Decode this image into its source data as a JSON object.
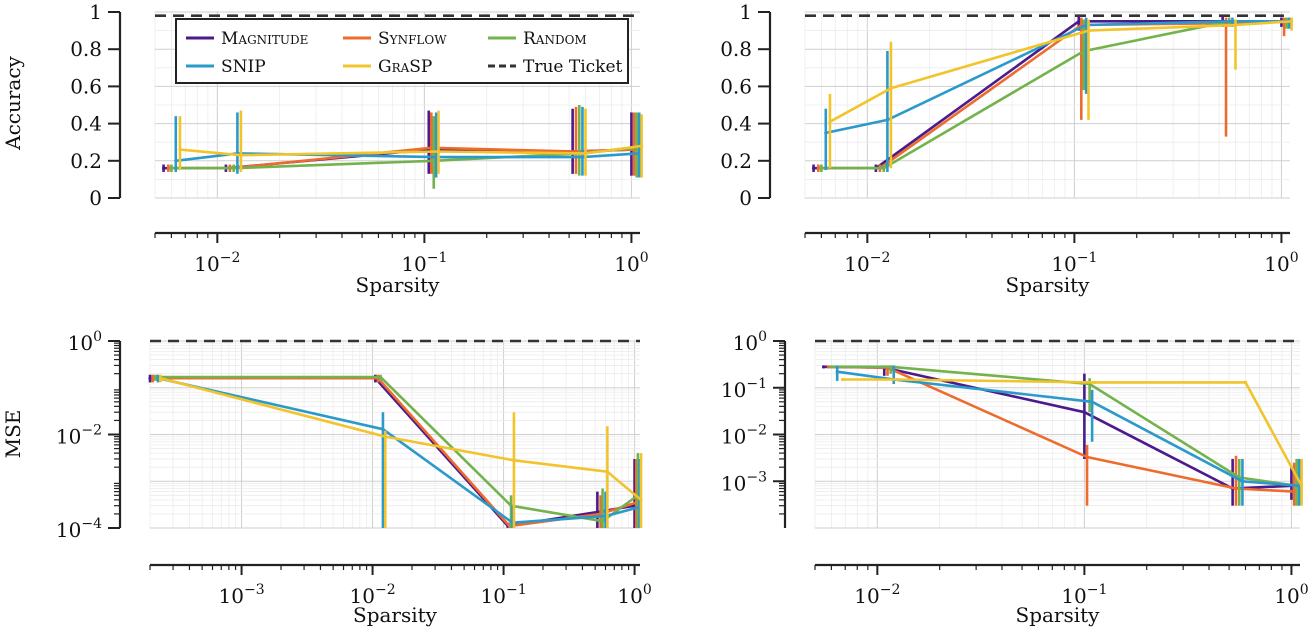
{
  "figure": {
    "x_title": "Sparsity",
    "y_title_top": "Accuracy",
    "y_title_bottom": "MSE"
  },
  "legend": {
    "items": [
      {
        "label": "Magnitude",
        "color": "#4b1a8c",
        "dash": false,
        "small_caps": true
      },
      {
        "label": "Synflow",
        "color": "#ee6b2e",
        "dash": false,
        "small_caps": true
      },
      {
        "label": "Random",
        "color": "#73b24c",
        "dash": false,
        "small_caps": true
      },
      {
        "label": "SNIP",
        "color": "#2b9acb",
        "dash": false,
        "small_caps": false
      },
      {
        "label": "GraSP",
        "color": "#f2c42c",
        "dash": false,
        "small_caps": true
      },
      {
        "label": "True Ticket",
        "color": "#333333",
        "dash": true,
        "small_caps": false
      }
    ]
  },
  "chart_data": [
    {
      "type": "line",
      "panel": "top-left",
      "xscale": "log",
      "yscale": "linear",
      "xlim": [
        0.005,
        1.1
      ],
      "ylim": [
        0,
        1
      ],
      "xlabel": "Sparsity",
      "ylabel": "Accuracy",
      "x_ticks": [
        {
          "v": 0.01,
          "base": "10",
          "exp": "−2"
        },
        {
          "v": 0.1,
          "base": "10",
          "exp": "−1"
        },
        {
          "v": 1,
          "base": "10",
          "exp": "0"
        }
      ],
      "y_ticks": [
        {
          "v": 0,
          "label": "0"
        },
        {
          "v": 0.2,
          "label": "0.2"
        },
        {
          "v": 0.4,
          "label": "0.4"
        },
        {
          "v": 0.6,
          "label": "0.6"
        },
        {
          "v": 0.8,
          "label": "0.8"
        },
        {
          "v": 1,
          "label": "1"
        }
      ],
      "reference": {
        "name": "True Ticket",
        "y": 0.98
      },
      "legend": "top-left",
      "series": [
        {
          "name": "Magnitude",
          "x": [
            0.0055,
            0.011,
            0.105,
            0.52,
            1.0
          ],
          "y": [
            0.16,
            0.16,
            0.26,
            0.25,
            0.26
          ],
          "err_low": [
            0.14,
            0.14,
            0.13,
            0.13,
            0.12
          ],
          "err_high": [
            0.18,
            0.18,
            0.47,
            0.48,
            0.46
          ]
        },
        {
          "name": "Synflow",
          "x": [
            0.0058,
            0.0115,
            0.108,
            0.54,
            1.03
          ],
          "y": [
            0.16,
            0.16,
            0.27,
            0.25,
            0.26
          ],
          "err_low": [
            0.14,
            0.14,
            0.13,
            0.13,
            0.12
          ],
          "err_high": [
            0.18,
            0.18,
            0.46,
            0.49,
            0.46
          ]
        },
        {
          "name": "Random",
          "x": [
            0.006,
            0.012,
            0.111,
            0.56,
            1.06
          ],
          "y": [
            0.16,
            0.16,
            0.2,
            0.24,
            0.27
          ],
          "err_low": [
            0.14,
            0.14,
            0.05,
            0.12,
            0.11
          ],
          "err_high": [
            0.18,
            0.18,
            0.44,
            0.5,
            0.46
          ]
        },
        {
          "name": "SNIP",
          "x": [
            0.0063,
            0.0125,
            0.114,
            0.58,
            1.09
          ],
          "y": [
            0.2,
            0.24,
            0.22,
            0.22,
            0.24
          ],
          "err_low": [
            0.14,
            0.13,
            0.11,
            0.12,
            0.11
          ],
          "err_high": [
            0.44,
            0.46,
            0.46,
            0.49,
            0.46
          ]
        },
        {
          "name": "GraSP",
          "x": [
            0.0066,
            0.013,
            0.117,
            0.6,
            1.12
          ],
          "y": [
            0.26,
            0.23,
            0.25,
            0.24,
            0.28
          ],
          "err_low": [
            0.15,
            0.14,
            0.13,
            0.12,
            0.11
          ],
          "err_high": [
            0.44,
            0.47,
            0.47,
            0.48,
            0.45
          ]
        }
      ]
    },
    {
      "type": "line",
      "panel": "top-right",
      "xscale": "log",
      "yscale": "linear",
      "xlim": [
        0.005,
        1.1
      ],
      "ylim": [
        0,
        1
      ],
      "xlabel": "Sparsity",
      "ylabel": "",
      "x_ticks": [
        {
          "v": 0.01,
          "base": "10",
          "exp": "−2"
        },
        {
          "v": 0.1,
          "base": "10",
          "exp": "−1"
        },
        {
          "v": 1,
          "base": "10",
          "exp": "0"
        }
      ],
      "y_ticks": [
        {
          "v": 0,
          "label": "0"
        },
        {
          "v": 0.2,
          "label": "0.2"
        },
        {
          "v": 0.4,
          "label": "0.4"
        },
        {
          "v": 0.6,
          "label": "0.6"
        },
        {
          "v": 0.8,
          "label": "0.8"
        },
        {
          "v": 1,
          "label": "1"
        }
      ],
      "reference": {
        "name": "True Ticket",
        "y": 0.98
      },
      "series": [
        {
          "name": "Magnitude",
          "x": [
            0.0055,
            0.011,
            0.105,
            0.52,
            1.0
          ],
          "y": [
            0.16,
            0.16,
            0.95,
            0.95,
            0.95
          ],
          "err_low": [
            0.14,
            0.14,
            0.9,
            0.92,
            0.92
          ],
          "err_high": [
            0.18,
            0.18,
            0.98,
            0.98,
            0.97
          ]
        },
        {
          "name": "Synflow",
          "x": [
            0.0058,
            0.0115,
            0.108,
            0.54,
            1.03
          ],
          "y": [
            0.16,
            0.16,
            0.93,
            0.94,
            0.95
          ],
          "err_low": [
            0.14,
            0.14,
            0.42,
            0.33,
            0.87
          ],
          "err_high": [
            0.18,
            0.18,
            0.97,
            0.97,
            0.97
          ]
        },
        {
          "name": "Random",
          "x": [
            0.006,
            0.012,
            0.111,
            0.56,
            1.06
          ],
          "y": [
            0.16,
            0.16,
            0.79,
            0.95,
            0.95
          ],
          "err_low": [
            0.14,
            0.14,
            0.58,
            0.92,
            0.91
          ],
          "err_high": [
            0.18,
            0.18,
            0.96,
            0.97,
            0.97
          ]
        },
        {
          "name": "SNIP",
          "x": [
            0.0063,
            0.0125,
            0.114,
            0.58,
            1.09
          ],
          "y": [
            0.35,
            0.42,
            0.93,
            0.95,
            0.95
          ],
          "err_low": [
            0.15,
            0.14,
            0.56,
            0.92,
            0.91
          ],
          "err_high": [
            0.48,
            0.79,
            0.97,
            0.97,
            0.97
          ]
        },
        {
          "name": "GraSP",
          "x": [
            0.0066,
            0.013,
            0.117,
            0.6,
            1.12
          ],
          "y": [
            0.41,
            0.59,
            0.9,
            0.93,
            0.95
          ],
          "err_low": [
            0.16,
            0.16,
            0.42,
            0.69,
            0.9
          ],
          "err_high": [
            0.56,
            0.84,
            0.96,
            0.96,
            0.97
          ]
        }
      ]
    },
    {
      "type": "line",
      "panel": "bottom-left",
      "xscale": "log",
      "yscale": "log",
      "xlim": [
        0.0002,
        1.1
      ],
      "ylim": [
        0.0001,
        1
      ],
      "xlabel": "Sparsity",
      "ylabel": "MSE",
      "x_ticks": [
        {
          "v": 0.001,
          "base": "10",
          "exp": "−3"
        },
        {
          "v": 0.01,
          "base": "10",
          "exp": "−2"
        },
        {
          "v": 0.1,
          "base": "10",
          "exp": "−1"
        },
        {
          "v": 1,
          "base": "10",
          "exp": "0"
        }
      ],
      "y_ticks": [
        {
          "v": 1,
          "base": "10",
          "exp": "0"
        },
        {
          "v": 0.01,
          "base": "10",
          "exp": "−2"
        },
        {
          "v": 0.0001,
          "base": "10",
          "exp": "−4"
        }
      ],
      "reference": {
        "name": "True Ticket",
        "y": 1
      },
      "series": [
        {
          "name": "Magnitude",
          "x": [
            0.0002,
            0.0105,
            0.108,
            0.52,
            1.0
          ],
          "y": [
            0.16,
            0.16,
            0.00011,
            0.00022,
            0.0003
          ],
          "err_low": [
            0.13,
            0.13,
            0.0001,
            0.0001,
            0.0001
          ],
          "err_high": [
            0.19,
            0.19,
            0.00013,
            0.0006,
            0.003
          ]
        },
        {
          "name": "Synflow",
          "x": [
            0.00021,
            0.011,
            0.111,
            0.55,
            1.03
          ],
          "y": [
            0.16,
            0.16,
            0.00011,
            0.0002,
            0.00035
          ],
          "err_low": [
            0.13,
            0.13,
            0.0001,
            0.0001,
            0.0001
          ],
          "err_high": [
            0.19,
            0.19,
            0.00013,
            0.0005,
            0.003
          ]
        },
        {
          "name": "Random",
          "x": [
            0.00022,
            0.0115,
            0.114,
            0.57,
            1.06
          ],
          "y": [
            0.17,
            0.17,
            0.0003,
            0.00014,
            0.0005
          ],
          "err_low": [
            0.14,
            0.14,
            0.0001,
            0.0001,
            0.0001
          ],
          "err_high": [
            0.19,
            0.19,
            0.0005,
            0.0007,
            0.004
          ]
        },
        {
          "name": "SNIP",
          "x": [
            0.00023,
            0.012,
            0.117,
            0.6,
            1.09
          ],
          "y": [
            0.16,
            0.013,
            0.00013,
            0.00018,
            0.00028
          ],
          "err_low": [
            0.13,
            0.0001,
            0.0001,
            0.0001,
            0.0001
          ],
          "err_high": [
            0.19,
            0.03,
            0.0003,
            0.0006,
            0.003
          ]
        },
        {
          "name": "GraSP",
          "x": [
            0.00024,
            0.0125,
            0.12,
            0.62,
            1.12
          ],
          "y": [
            0.16,
            0.009,
            0.0028,
            0.0016,
            0.0004
          ],
          "err_low": [
            0.13,
            0.0001,
            0.0001,
            0.0001,
            0.0001
          ],
          "err_high": [
            0.19,
            0.012,
            0.03,
            0.015,
            0.004
          ]
        }
      ]
    },
    {
      "type": "line",
      "panel": "bottom-right",
      "xscale": "log",
      "yscale": "log",
      "xlim": [
        0.005,
        1.1
      ],
      "ylim": [
        0.0001,
        1
      ],
      "xlabel": "Sparsity",
      "ylabel": "",
      "x_ticks": [
        {
          "v": 0.01,
          "base": "10",
          "exp": "−2"
        },
        {
          "v": 0.1,
          "base": "10",
          "exp": "−1"
        },
        {
          "v": 1,
          "base": "10",
          "exp": "0"
        }
      ],
      "y_ticks": [
        {
          "v": 1,
          "base": "10",
          "exp": "0"
        },
        {
          "v": 0.1,
          "base": "10",
          "exp": "−1"
        },
        {
          "v": 0.01,
          "base": "10",
          "exp": "−2"
        },
        {
          "v": 0.001,
          "base": "10",
          "exp": "−3"
        }
      ],
      "reference": {
        "name": "True Ticket",
        "y": 1
      },
      "series": [
        {
          "name": "Magnitude",
          "x": [
            0.0055,
            0.0108,
            0.1,
            0.52,
            1.0
          ],
          "y": [
            0.28,
            0.27,
            0.03,
            0.0007,
            0.0008
          ],
          "err_low": [
            0.26,
            0.18,
            0.003,
            0.0003,
            0.0004
          ],
          "err_high": [
            0.29,
            0.3,
            0.2,
            0.003,
            0.002
          ]
        },
        {
          "name": "Synflow",
          "x": [
            0.0058,
            0.0112,
            0.103,
            0.54,
            1.03
          ],
          "y": [
            0.28,
            0.27,
            0.0033,
            0.0007,
            0.0006
          ],
          "err_low": [
            0.26,
            0.18,
            0.0003,
            0.0003,
            0.0003
          ],
          "err_high": [
            0.29,
            0.3,
            0.006,
            0.0035,
            0.0025
          ]
        },
        {
          "name": "Random",
          "x": [
            0.006,
            0.0116,
            0.106,
            0.56,
            1.06
          ],
          "y": [
            0.28,
            0.28,
            0.12,
            0.0012,
            0.0008
          ],
          "err_low": [
            0.26,
            0.2,
            0.03,
            0.0003,
            0.0003
          ],
          "err_high": [
            0.29,
            0.3,
            0.16,
            0.003,
            0.003
          ]
        },
        {
          "name": "SNIP",
          "x": [
            0.0064,
            0.012,
            0.109,
            0.58,
            1.09
          ],
          "y": [
            0.22,
            0.15,
            0.05,
            0.001,
            0.0008
          ],
          "err_low": [
            0.14,
            0.12,
            0.007,
            0.0003,
            0.0003
          ],
          "err_high": [
            0.3,
            0.3,
            0.09,
            0.003,
            0.003
          ]
        },
        {
          "name": "GraSP",
          "x": [
            0.0068,
            0.0125,
            0.112,
            0.6,
            1.12
          ],
          "y": [
            0.15,
            0.15,
            0.13,
            0.13,
            0.0008
          ],
          "err_low": [
            0.14,
            0.14,
            0.12,
            0.12,
            0.0003
          ],
          "err_high": [
            0.16,
            0.16,
            0.14,
            0.14,
            0.003
          ]
        }
      ]
    }
  ]
}
